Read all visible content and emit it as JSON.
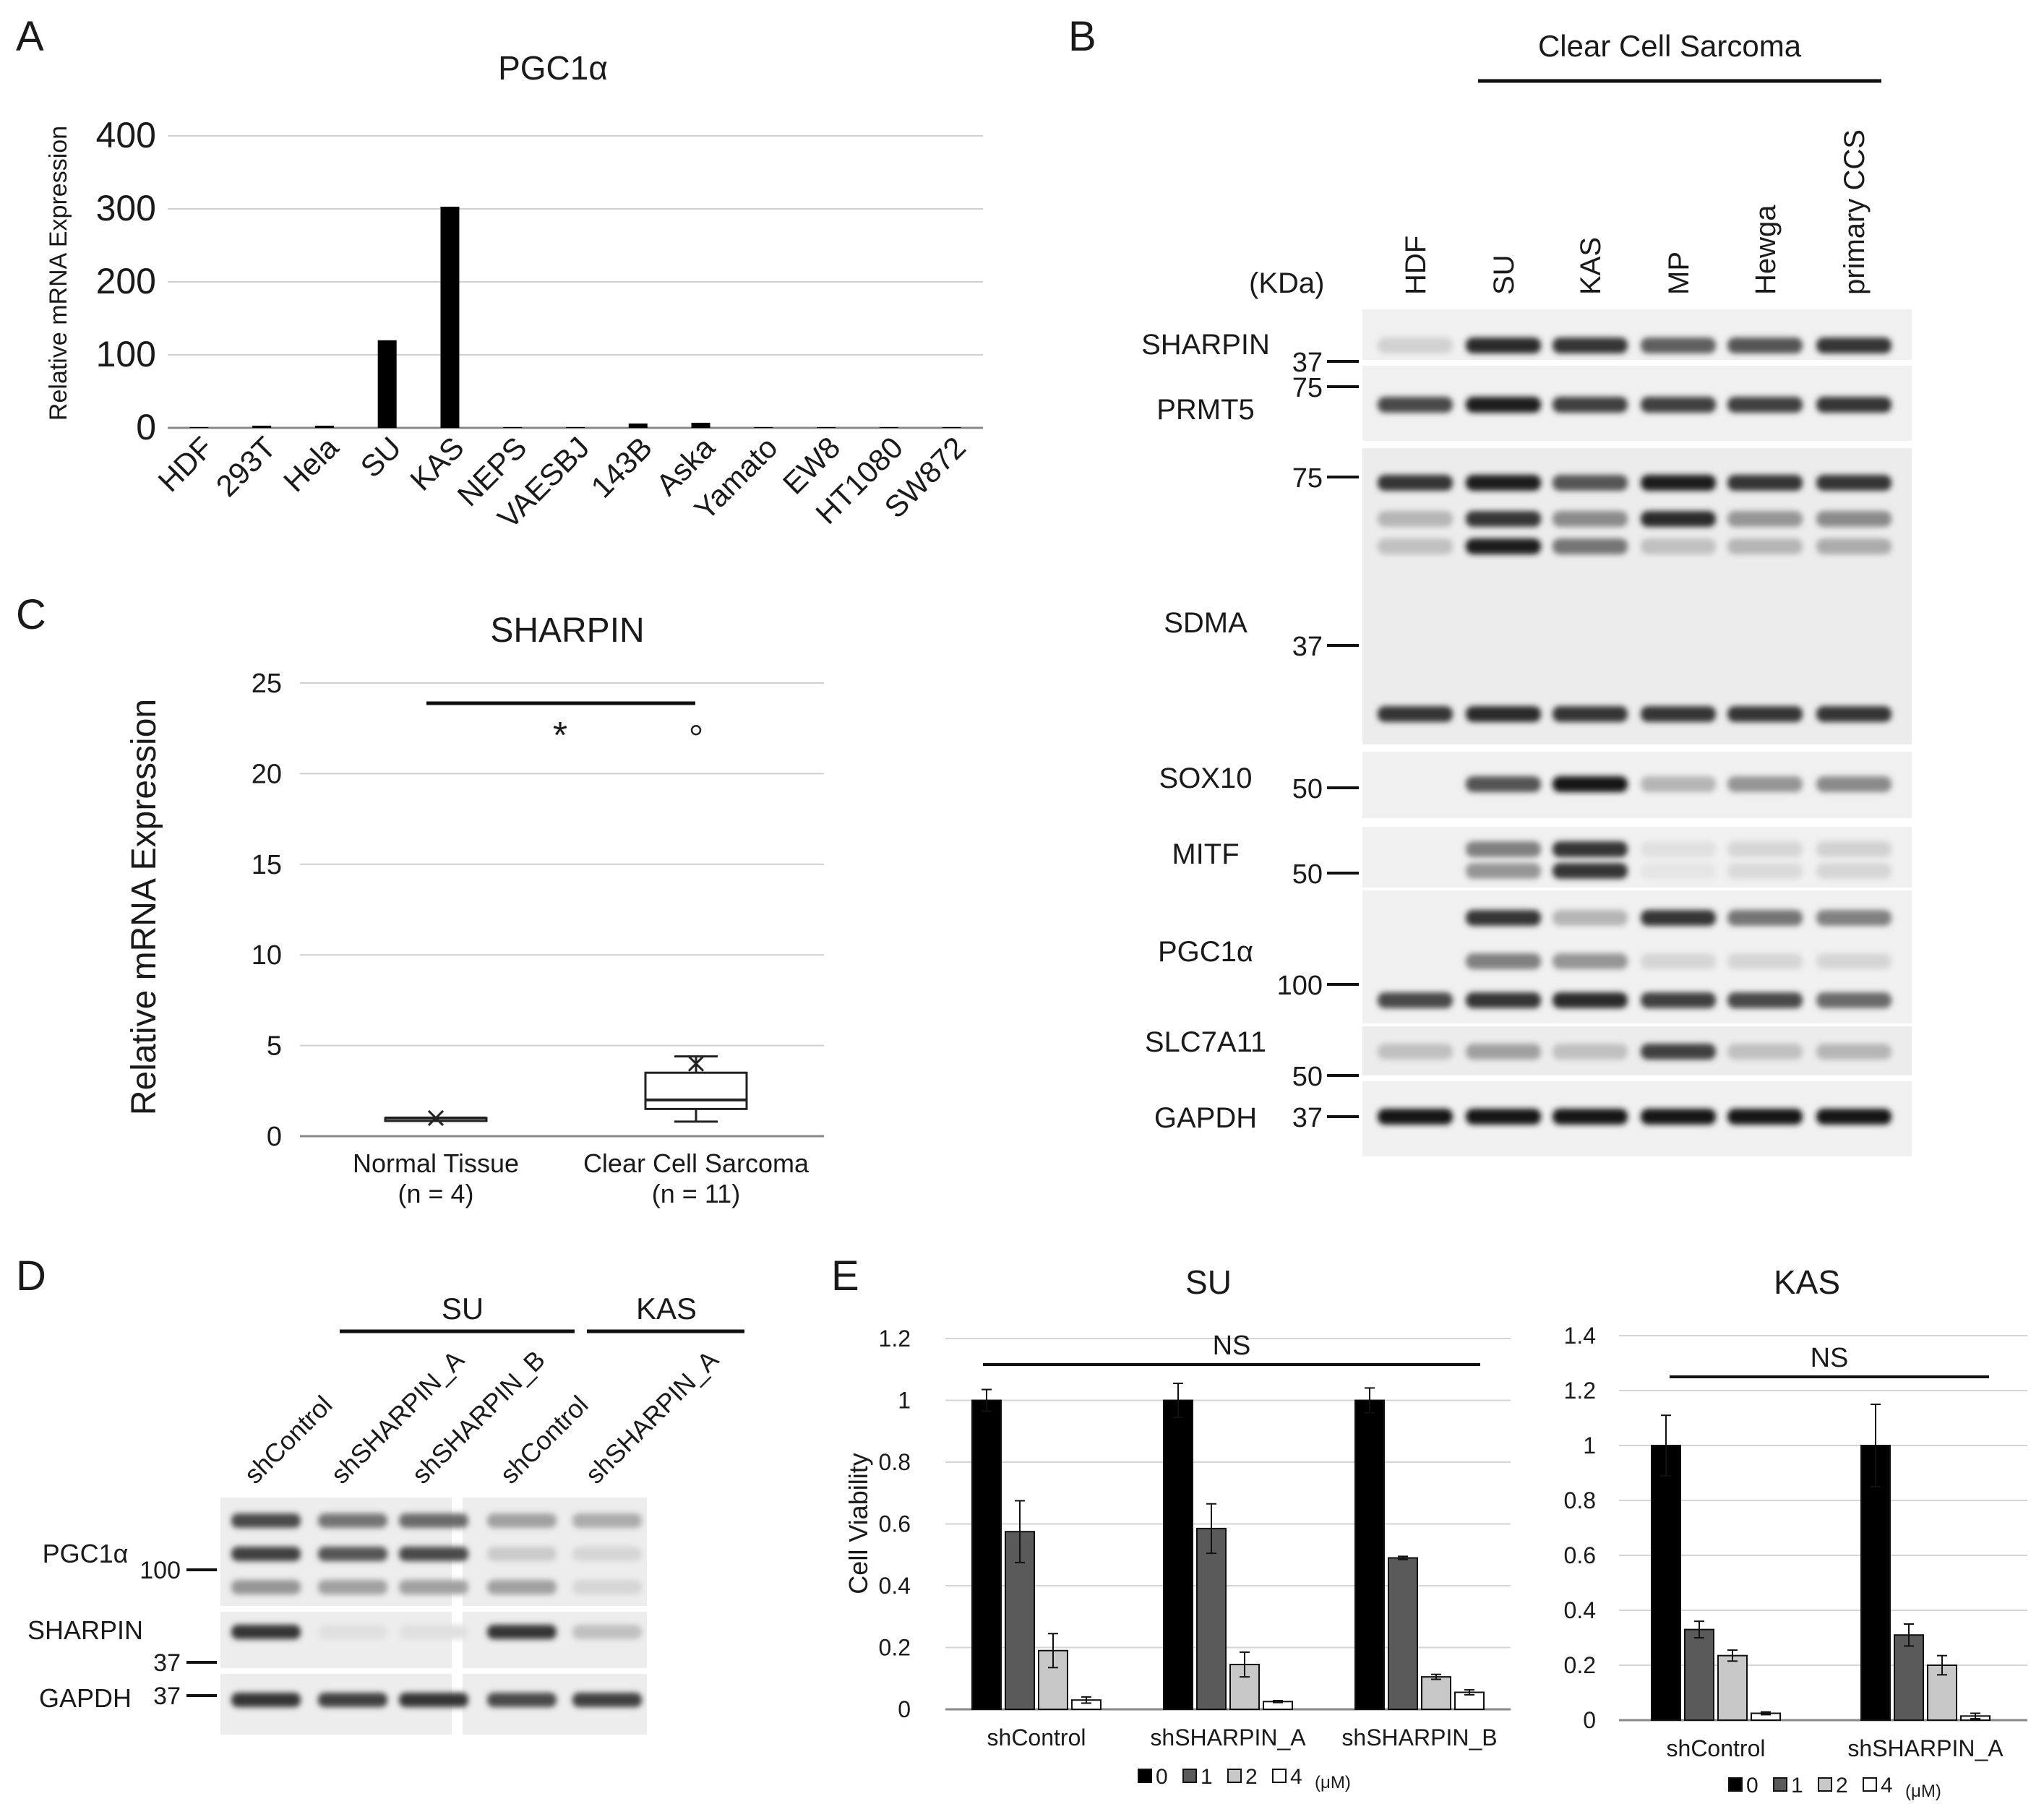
{
  "panel_letters": [
    "A",
    "B",
    "C",
    "D",
    "E"
  ],
  "panelA": {
    "chart_data": {
      "type": "bar",
      "title": "PGC1α",
      "ylabel": "Relative mRNA Expression",
      "xlabel": "",
      "ylim": [
        0,
        400
      ],
      "yticks": [
        "0",
        "100",
        "200",
        "300",
        "400"
      ],
      "categories": [
        "HDF",
        "293T",
        "Hela",
        "SU",
        "KAS",
        "NEPS",
        "VAESBJ",
        "143B",
        "Aska",
        "Yamato",
        "EW8",
        "HT1080",
        "SW872"
      ],
      "values": [
        1,
        3,
        3,
        120,
        303,
        1,
        1,
        6,
        7,
        1,
        1,
        1,
        1
      ],
      "grid": true,
      "color": "#000000"
    }
  },
  "panelB": {
    "group_label": "Clear Cell Sarcoma",
    "unit_label": "(KDa)",
    "lanes": [
      "HDF",
      "SU",
      "KAS",
      "MP",
      "Hewga",
      "primary CCS"
    ],
    "blots": [
      {
        "name": "SHARPIN",
        "markers": [
          "37"
        ]
      },
      {
        "name": "PRMT5",
        "markers": [
          "75"
        ]
      },
      {
        "name": "SDMA",
        "markers": [
          "75",
          "37"
        ]
      },
      {
        "name": "SOX10",
        "markers": [
          "50"
        ]
      },
      {
        "name": "MITF",
        "markers": [
          "50"
        ]
      },
      {
        "name": "PGC1α",
        "markers": [
          "100"
        ]
      },
      {
        "name": "SLC7A11",
        "markers": [
          "50"
        ]
      },
      {
        "name": "GAPDH",
        "markers": [
          "37"
        ]
      }
    ]
  },
  "panelC": {
    "chart_data": {
      "type": "box",
      "title": "SHARPIN",
      "ylabel": "Relative mRNA Expression",
      "ylim": [
        0,
        25
      ],
      "yticks": [
        "0",
        "5",
        "10",
        "15",
        "20",
        "25"
      ],
      "grid": true,
      "groups": [
        {
          "name": "Normal Tissue",
          "n": "(n = 4)",
          "min": 1.0,
          "q1": 1.0,
          "median": 1.0,
          "q3": 1.0,
          "max": 1.0,
          "mean": 1.0,
          "outliers": []
        },
        {
          "name": "Clear Cell Sarcoma",
          "n": "(n = 11)",
          "min": 0.8,
          "q1": 1.5,
          "median": 2.0,
          "q3": 3.5,
          "max": 4.4,
          "mean": 4.0,
          "outliers": [
            22.4
          ]
        }
      ],
      "significance": "*"
    }
  },
  "panelD": {
    "group_su": "SU",
    "group_kas": "KAS",
    "lanes": [
      "shControl",
      "shSHARPIN_A",
      "shSHARPIN_B",
      "shControl",
      "shSHARPIN_A"
    ],
    "blots": [
      {
        "name": "PGC1α",
        "marker": "100"
      },
      {
        "name": "SHARPIN",
        "marker": "37"
      },
      {
        "name": "GAPDH",
        "marker": "37"
      }
    ]
  },
  "panelE": {
    "ylabel": "Cell Viability",
    "legend_entries": [
      "0",
      "1",
      "2",
      "4"
    ],
    "legend_unit": "(μM)",
    "colors": [
      "#000000",
      "#5a5a5a",
      "#c8c8c8",
      "#ffffff"
    ],
    "significance": "NS",
    "charts": [
      {
        "chart_data": {
          "type": "bar",
          "title": "SU",
          "ylim": [
            0,
            1.2
          ],
          "yticks": [
            "0",
            "0.2",
            "0.4",
            "0.6",
            "0.8",
            "1",
            "1.2"
          ],
          "categories": [
            "shControl",
            "shSHARPIN_A",
            "shSHARPIN_B"
          ],
          "series": [
            {
              "name": "0",
              "values": [
                1.0,
                1.0,
                1.0
              ],
              "errors": [
                0.035,
                0.055,
                0.04
              ]
            },
            {
              "name": "1",
              "values": [
                0.575,
                0.585,
                0.49
              ],
              "errors": [
                0.1,
                0.08,
                0.005
              ]
            },
            {
              "name": "2",
              "values": [
                0.19,
                0.145,
                0.105
              ],
              "errors": [
                0.055,
                0.04,
                0.008
              ]
            },
            {
              "name": "4",
              "values": [
                0.03,
                0.025,
                0.055
              ],
              "errors": [
                0.01,
                0.003,
                0.008
              ]
            }
          ]
        }
      },
      {
        "chart_data": {
          "type": "bar",
          "title": "KAS",
          "ylim": [
            0,
            1.4
          ],
          "yticks": [
            "0",
            "0.2",
            "0.4",
            "0.6",
            "0.8",
            "1",
            "1.2",
            "1.4"
          ],
          "categories": [
            "shControl",
            "shSHARPIN_A"
          ],
          "series": [
            {
              "name": "0",
              "values": [
                1.0,
                1.0
              ],
              "errors": [
                0.11,
                0.15
              ]
            },
            {
              "name": "1",
              "values": [
                0.33,
                0.31
              ],
              "errors": [
                0.03,
                0.04
              ]
            },
            {
              "name": "2",
              "values": [
                0.235,
                0.2
              ],
              "errors": [
                0.02,
                0.035
              ]
            },
            {
              "name": "4",
              "values": [
                0.025,
                0.015
              ],
              "errors": [
                0.005,
                0.01
              ]
            }
          ]
        }
      }
    ]
  }
}
